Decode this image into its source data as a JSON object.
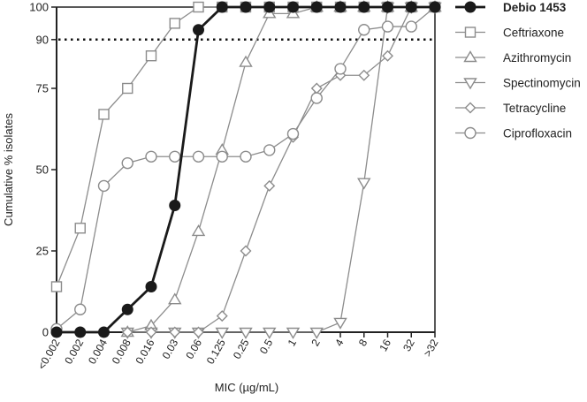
{
  "chart_data": {
    "type": "line",
    "xlabel": "MIC (µg/mL)",
    "ylabel": "Cumulative % isolates",
    "categories": [
      "<0.002",
      "0.002",
      "0.004",
      "0.008",
      "0.016",
      "0.03",
      "0.06",
      "0.125",
      "0.25",
      "0.5",
      "1",
      "2",
      "4",
      "8",
      "16",
      "32",
      ">32"
    ],
    "ylim": [
      0,
      100
    ],
    "yticks": [
      0,
      25,
      50,
      75,
      90,
      100
    ],
    "reference_line": {
      "y": 90,
      "style": "dotted"
    },
    "legend_position": "right",
    "grid": false,
    "series": [
      {
        "name": "Ceftriaxone",
        "marker": "square",
        "color": "#8c8c8c",
        "values": [
          14,
          32,
          67,
          75,
          85,
          95,
          100,
          100,
          100,
          100,
          100,
          100,
          100,
          100,
          100,
          100,
          100
        ]
      },
      {
        "name": "Azithromycin",
        "marker": "triangle-up",
        "color": "#8c8c8c",
        "values": [
          null,
          null,
          null,
          0,
          2,
          10,
          31,
          56,
          83,
          98,
          98,
          100,
          100,
          100,
          100,
          100,
          100
        ]
      },
      {
        "name": "Spectinomycin",
        "marker": "triangle-down",
        "color": "#8c8c8c",
        "values": [
          null,
          null,
          null,
          0,
          0,
          0,
          0,
          0,
          0,
          0,
          0,
          0,
          3,
          46,
          100,
          100,
          100
        ]
      },
      {
        "name": "Tetracycline",
        "marker": "diamond",
        "color": "#8c8c8c",
        "values": [
          null,
          null,
          null,
          0,
          0,
          0,
          0,
          5,
          25,
          45,
          60,
          75,
          79,
          79,
          85,
          100,
          100
        ]
      },
      {
        "name": "Ciprofloxacin",
        "marker": "circle-open",
        "color": "#8c8c8c",
        "values": [
          1,
          7,
          45,
          52,
          54,
          54,
          54,
          54,
          54,
          56,
          61,
          72,
          81,
          93,
          94,
          94,
          100
        ]
      },
      {
        "name": "Debio 1453",
        "marker": "circle-filled",
        "color": "#1a1a1a",
        "bold": true,
        "values": [
          0,
          0,
          0,
          7,
          14,
          39,
          93,
          100,
          100,
          100,
          100,
          100,
          100,
          100,
          100,
          100,
          100
        ]
      }
    ]
  }
}
